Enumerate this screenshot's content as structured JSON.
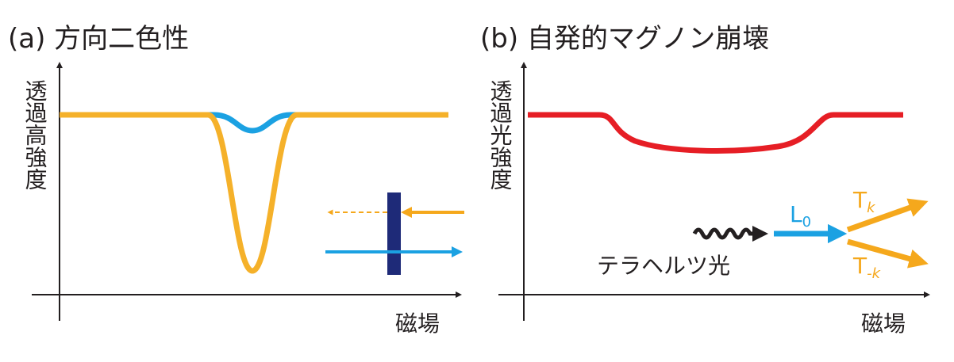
{
  "panels": [
    {
      "title": "(a) 方向二色性",
      "y_label": "透過高強度",
      "x_label": "磁場"
    },
    {
      "title": "(b) 自発的マグノン崩壊",
      "y_label": "透過光強度",
      "x_label": "磁場",
      "light_label": "テラヘルツ光",
      "magnon_label": {
        "main": "L",
        "sub": "0"
      },
      "decay_labels": [
        {
          "main": "T",
          "sub": "k"
        },
        {
          "main": "T",
          "sub": "-k"
        }
      ]
    }
  ]
}
